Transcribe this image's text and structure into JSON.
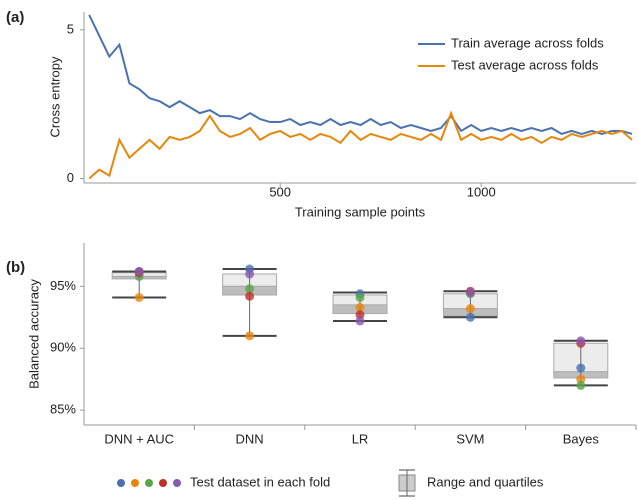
{
  "chart_data": [
    {
      "type": "line",
      "panel_label": "(a)",
      "xlabel": "Training sample points",
      "ylabel": "Cross entropy",
      "x": [
        25,
        50,
        75,
        100,
        125,
        150,
        175,
        200,
        225,
        250,
        275,
        300,
        325,
        350,
        375,
        400,
        425,
        450,
        475,
        500,
        525,
        550,
        575,
        600,
        625,
        650,
        675,
        700,
        725,
        750,
        775,
        800,
        825,
        850,
        875,
        900,
        925,
        950,
        975,
        1000,
        1025,
        1050,
        1075,
        1100,
        1125,
        1150,
        1175,
        1200,
        1225,
        1250,
        1275,
        1300,
        1325,
        1350,
        1375
      ],
      "series": [
        {
          "name": "Train average across folds",
          "color": "#4a72b0",
          "values": [
            5.5,
            4.8,
            4.1,
            4.5,
            3.2,
            3.0,
            2.7,
            2.6,
            2.4,
            2.6,
            2.4,
            2.2,
            2.3,
            2.1,
            2.1,
            2.0,
            2.2,
            2.0,
            1.9,
            1.9,
            2.0,
            1.8,
            1.9,
            1.8,
            2.0,
            1.8,
            1.9,
            1.8,
            2.0,
            1.8,
            1.9,
            1.7,
            1.8,
            1.7,
            1.6,
            1.7,
            2.1,
            1.6,
            1.8,
            1.6,
            1.7,
            1.6,
            1.7,
            1.6,
            1.7,
            1.6,
            1.7,
            1.5,
            1.6,
            1.5,
            1.6,
            1.5,
            1.6,
            1.6,
            1.5
          ]
        },
        {
          "name": "Test average across folds",
          "color": "#e8860c",
          "values": [
            0,
            0.3,
            0.1,
            1.3,
            0.7,
            1.0,
            1.3,
            1.0,
            1.4,
            1.3,
            1.4,
            1.6,
            2.1,
            1.6,
            1.4,
            1.5,
            1.7,
            1.3,
            1.5,
            1.6,
            1.4,
            1.5,
            1.3,
            1.5,
            1.4,
            1.2,
            1.6,
            1.3,
            1.5,
            1.4,
            1.3,
            1.5,
            1.4,
            1.3,
            1.5,
            1.3,
            2.2,
            1.3,
            1.5,
            1.3,
            1.4,
            1.3,
            1.5,
            1.3,
            1.4,
            1.2,
            1.4,
            1.3,
            1.5,
            1.4,
            1.5,
            1.6,
            1.5,
            1.6,
            1.3
          ]
        }
      ],
      "xlim": [
        12,
        1385
      ],
      "ylim": [
        -0.15,
        5.6
      ],
      "xticks": [
        500,
        1000
      ],
      "yticks": [
        0,
        5
      ],
      "legend": "top-right"
    },
    {
      "type": "box",
      "panel_label": "(b)",
      "ylabel": "Balanced accuracy",
      "categories": [
        "DNN + AUC",
        "DNN",
        "LR",
        "SVM",
        "Bayes"
      ],
      "ylim": [
        83.8,
        98.5
      ],
      "yticks": [
        {
          "value": 85,
          "label": "85%"
        },
        {
          "value": 90,
          "label": "90%"
        },
        {
          "value": 95,
          "label": "95%"
        }
      ],
      "boxes": {
        "name": "Range and quartiles",
        "min": [
          94.1,
          91.0,
          92.2,
          92.5,
          87.0
        ],
        "q1": [
          95.6,
          94.3,
          92.8,
          92.6,
          87.6
        ],
        "median": [
          95.8,
          95.0,
          93.5,
          93.2,
          88.1
        ],
        "q3": [
          96.1,
          96.0,
          94.3,
          94.4,
          90.4
        ],
        "max": [
          96.2,
          96.4,
          94.5,
          94.6,
          90.6
        ]
      },
      "points": {
        "name": "Test dataset in each fold",
        "colors": [
          "#4a72b0",
          "#e8860c",
          "#5aa54a",
          "#c0302a",
          "#8a5ab0"
        ],
        "values": [
          [
            96.2,
            96.4,
            94.4,
            92.5,
            88.4
          ],
          [
            94.1,
            91.0,
            93.3,
            93.2,
            87.5
          ],
          [
            95.8,
            94.8,
            94.1,
            94.4,
            87.0
          ],
          [
            96.1,
            94.2,
            92.7,
            94.6,
            90.4
          ],
          [
            96.2,
            96.0,
            92.2,
            94.5,
            90.6
          ]
        ]
      }
    }
  ]
}
